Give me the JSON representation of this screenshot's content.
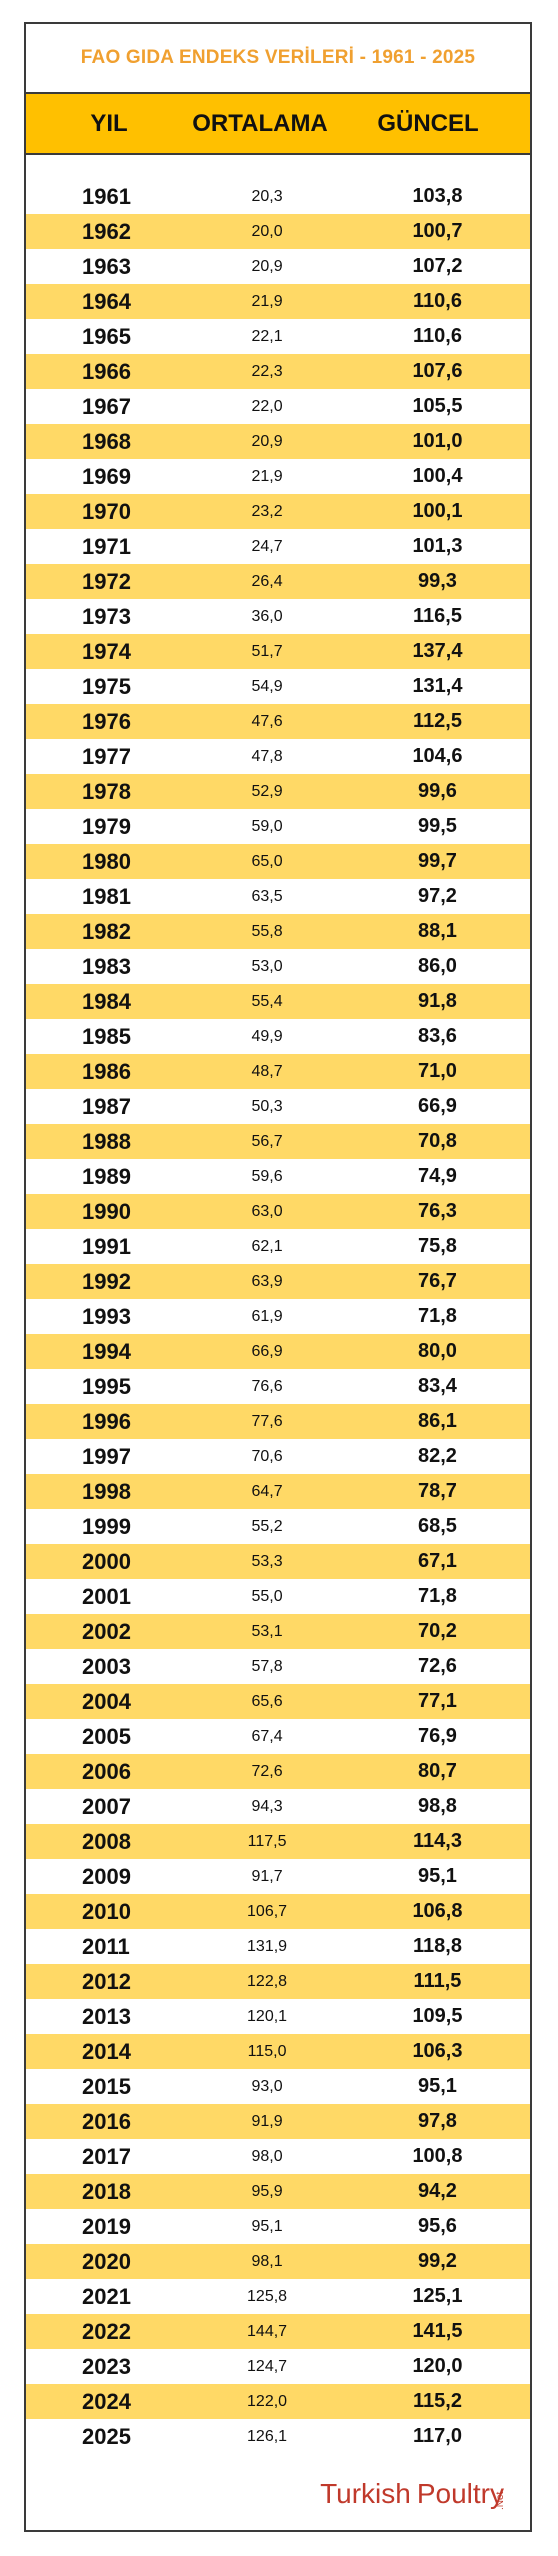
{
  "title": "FAO GIDA ENDEKS VERİLERİ - 1961 - 2025",
  "columns": {
    "year": "YIL",
    "average": "ORTALAMA",
    "current": "GÜNCEL"
  },
  "rows": [
    {
      "year": "1961",
      "average": "20,3",
      "current": "103,8"
    },
    {
      "year": "1962",
      "average": "20,0",
      "current": "100,7"
    },
    {
      "year": "1963",
      "average": "20,9",
      "current": "107,2"
    },
    {
      "year": "1964",
      "average": "21,9",
      "current": "110,6"
    },
    {
      "year": "1965",
      "average": "22,1",
      "current": "110,6"
    },
    {
      "year": "1966",
      "average": "22,3",
      "current": "107,6"
    },
    {
      "year": "1967",
      "average": "22,0",
      "current": "105,5"
    },
    {
      "year": "1968",
      "average": "20,9",
      "current": "101,0"
    },
    {
      "year": "1969",
      "average": "21,9",
      "current": "100,4"
    },
    {
      "year": "1970",
      "average": "23,2",
      "current": "100,1"
    },
    {
      "year": "1971",
      "average": "24,7",
      "current": "101,3"
    },
    {
      "year": "1972",
      "average": "26,4",
      "current": "99,3"
    },
    {
      "year": "1973",
      "average": "36,0",
      "current": "116,5"
    },
    {
      "year": "1974",
      "average": "51,7",
      "current": "137,4"
    },
    {
      "year": "1975",
      "average": "54,9",
      "current": "131,4"
    },
    {
      "year": "1976",
      "average": "47,6",
      "current": "112,5"
    },
    {
      "year": "1977",
      "average": "47,8",
      "current": "104,6"
    },
    {
      "year": "1978",
      "average": "52,9",
      "current": "99,6"
    },
    {
      "year": "1979",
      "average": "59,0",
      "current": "99,5"
    },
    {
      "year": "1980",
      "average": "65,0",
      "current": "99,7"
    },
    {
      "year": "1981",
      "average": "63,5",
      "current": "97,2"
    },
    {
      "year": "1982",
      "average": "55,8",
      "current": "88,1"
    },
    {
      "year": "1983",
      "average": "53,0",
      "current": "86,0"
    },
    {
      "year": "1984",
      "average": "55,4",
      "current": "91,8"
    },
    {
      "year": "1985",
      "average": "49,9",
      "current": "83,6"
    },
    {
      "year": "1986",
      "average": "48,7",
      "current": "71,0"
    },
    {
      "year": "1987",
      "average": "50,3",
      "current": "66,9"
    },
    {
      "year": "1988",
      "average": "56,7",
      "current": "70,8"
    },
    {
      "year": "1989",
      "average": "59,6",
      "current": "74,9"
    },
    {
      "year": "1990",
      "average": "63,0",
      "current": "76,3"
    },
    {
      "year": "1991",
      "average": "62,1",
      "current": "75,8"
    },
    {
      "year": "1992",
      "average": "63,9",
      "current": "76,7"
    },
    {
      "year": "1993",
      "average": "61,9",
      "current": "71,8"
    },
    {
      "year": "1994",
      "average": "66,9",
      "current": "80,0"
    },
    {
      "year": "1995",
      "average": "76,6",
      "current": "83,4"
    },
    {
      "year": "1996",
      "average": "77,6",
      "current": "86,1"
    },
    {
      "year": "1997",
      "average": "70,6",
      "current": "82,2"
    },
    {
      "year": "1998",
      "average": "64,7",
      "current": "78,7"
    },
    {
      "year": "1999",
      "average": "55,2",
      "current": "68,5"
    },
    {
      "year": "2000",
      "average": "53,3",
      "current": "67,1"
    },
    {
      "year": "2001",
      "average": "55,0",
      "current": "71,8"
    },
    {
      "year": "2002",
      "average": "53,1",
      "current": "70,2"
    },
    {
      "year": "2003",
      "average": "57,8",
      "current": "72,6"
    },
    {
      "year": "2004",
      "average": "65,6",
      "current": "77,1"
    },
    {
      "year": "2005",
      "average": "67,4",
      "current": "76,9"
    },
    {
      "year": "2006",
      "average": "72,6",
      "current": "80,7"
    },
    {
      "year": "2007",
      "average": "94,3",
      "current": "98,8"
    },
    {
      "year": "2008",
      "average": "117,5",
      "current": "114,3"
    },
    {
      "year": "2009",
      "average": "91,7",
      "current": "95,1"
    },
    {
      "year": "2010",
      "average": "106,7",
      "current": "106,8"
    },
    {
      "year": "2011",
      "average": "131,9",
      "current": "118,8"
    },
    {
      "year": "2012",
      "average": "122,8",
      "current": "111,5"
    },
    {
      "year": "2013",
      "average": "120,1",
      "current": "109,5"
    },
    {
      "year": "2014",
      "average": "115,0",
      "current": "106,3"
    },
    {
      "year": "2015",
      "average": "93,0",
      "current": "95,1"
    },
    {
      "year": "2016",
      "average": "91,9",
      "current": "97,8"
    },
    {
      "year": "2017",
      "average": "98,0",
      "current": "100,8"
    },
    {
      "year": "2018",
      "average": "95,9",
      "current": "94,2"
    },
    {
      "year": "2019",
      "average": "95,1",
      "current": "95,6"
    },
    {
      "year": "2020",
      "average": "98,1",
      "current": "99,2"
    },
    {
      "year": "2021",
      "average": "125,8",
      "current": "125,1"
    },
    {
      "year": "2022",
      "average": "144,7",
      "current": "141,5"
    },
    {
      "year": "2023",
      "average": "124,7",
      "current": "120,0"
    },
    {
      "year": "2024",
      "average": "122,0",
      "current": "115,2"
    },
    {
      "year": "2025",
      "average": "126,1",
      "current": "117,0"
    }
  ],
  "logo": {
    "part1": "Turkish",
    "part2": "Poultry",
    "tld": ".Net"
  },
  "colors": {
    "title": "#f0a030",
    "header_bg": "#ffc000",
    "alt_row_bg": "#ffd966",
    "logo": "#c0392b"
  }
}
